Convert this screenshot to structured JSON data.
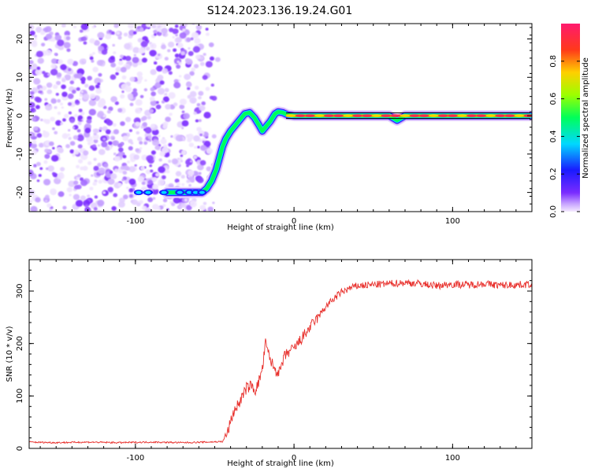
{
  "title": "S124.2023.136.19.24.G01",
  "chart_data": [
    {
      "type": "heatmap",
      "xlabel": "Height of straight line (km)",
      "ylabel": "Frequency (Hz)",
      "xlim": [
        -167,
        150
      ],
      "ylim": [
        -25,
        24
      ],
      "xticks": [
        -100,
        0,
        100
      ],
      "yticks": [
        20,
        10,
        0,
        -10,
        -20
      ],
      "grid": false,
      "noise_region_x": [
        -167,
        -48
      ],
      "signal_ridge": {
        "x": [
          -80,
          -62,
          -58,
          -55,
          -52,
          -49,
          -47,
          -45,
          -43,
          -40,
          -37,
          -34,
          -31,
          -28,
          -25,
          -22,
          -20,
          -18,
          -15,
          -12,
          -10,
          -7,
          -4,
          0,
          10,
          20,
          40,
          60,
          65,
          70,
          80,
          100,
          120,
          149
        ],
        "freq": [
          -20,
          -20,
          -20,
          -19,
          -17,
          -14,
          -11,
          -8,
          -6,
          -4,
          -2.5,
          -1,
          0.5,
          0.8,
          -0.5,
          -2.5,
          -4,
          -3,
          -1.5,
          0.5,
          1,
          0.8,
          0.2,
          0,
          0,
          0,
          0,
          0,
          -1.2,
          0,
          0,
          0,
          0,
          0
        ]
      },
      "colorbar": {
        "label": "Normalized spectral amplitude",
        "ticks": [
          "0.0",
          "0.2",
          "0.4",
          "0.6",
          "0.8"
        ],
        "tick_values": [
          0,
          0.2,
          0.4,
          0.6,
          0.8
        ],
        "range": [
          0,
          1
        ]
      }
    },
    {
      "type": "line",
      "xlabel": "Height of straight line (km)",
      "ylabel": "SNR (10 * v/v)",
      "xlim": [
        -167,
        150
      ],
      "ylim": [
        0,
        360
      ],
      "xticks": [
        -100,
        0,
        100
      ],
      "yticks": [
        300,
        200,
        100,
        0
      ],
      "grid": false,
      "series": [
        {
          "color": "#e8302c",
          "x": [
            -167,
            -150,
            -130,
            -110,
            -90,
            -70,
            -55,
            -45,
            -42,
            -38,
            -34,
            -30,
            -27,
            -24,
            -22,
            -20,
            -18,
            -15,
            -12,
            -9,
            -6,
            -3,
            0,
            5,
            10,
            15,
            20,
            25,
            30,
            35,
            40,
            50,
            60,
            70,
            80,
            90,
            95,
            100,
            110,
            120,
            130,
            140,
            150
          ],
          "y": [
            12,
            11,
            12,
            11,
            12,
            11,
            12,
            13,
            30,
            70,
            90,
            115,
            120,
            110,
            130,
            150,
            200,
            170,
            150,
            145,
            175,
            185,
            190,
            210,
            230,
            250,
            270,
            285,
            298,
            305,
            310,
            312,
            314,
            316,
            314,
            310,
            312,
            313,
            312,
            314,
            311,
            312,
            313
          ]
        }
      ]
    }
  ]
}
